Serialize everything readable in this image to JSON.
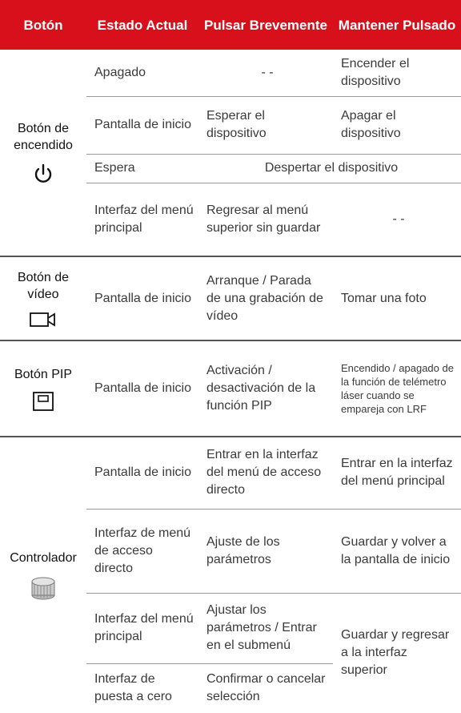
{
  "header": {
    "columns": [
      "Botón",
      "Estado Actual",
      "Pulsar Brevemente",
      "Mantener Pulsado"
    ]
  },
  "groups": [
    {
      "button": "Botón de encendido",
      "rows": [
        [
          "Apagado",
          "- -",
          "Encender el dispositivo"
        ],
        [
          "Pantalla de inicio",
          "Esperar el dispositivo",
          "Apagar el dispositivo"
        ],
        [
          "Espera",
          "Despertar el dispositivo"
        ],
        [
          "Interfaz del menú principal",
          "Regresar al menú superior sin guardar",
          "- -"
        ]
      ]
    },
    {
      "button": "Botón de vídeo",
      "rows": [
        [
          "Pantalla de inicio",
          "Arranque / Parada de una grabación de vídeo",
          "Tomar una foto"
        ]
      ]
    },
    {
      "button": "Botón PIP",
      "rows": [
        [
          "Pantalla de inicio",
          "Activación / desactivación de la función PIP",
          "Encendido / apagado de la función de telémetro láser cuando se empareja con LRF"
        ]
      ]
    },
    {
      "button": "Controlador",
      "rows": [
        [
          "Pantalla de inicio",
          "Entrar en la interfaz del menú de acceso directo",
          "Entrar en la interfaz del menú principal"
        ],
        [
          "Interfaz de menú de acceso directo",
          "Ajuste de los parámetros",
          "Guardar y volver a la pantalla de inicio"
        ],
        [
          "Interfaz del menú principal",
          "Ajustar los parámetros / Entrar en el submenú",
          "Guardar y regresar a la interfaz superior"
        ],
        [
          "Interfaz de puesta a cero",
          "Confirmar o cancelar selección"
        ]
      ]
    }
  ]
}
